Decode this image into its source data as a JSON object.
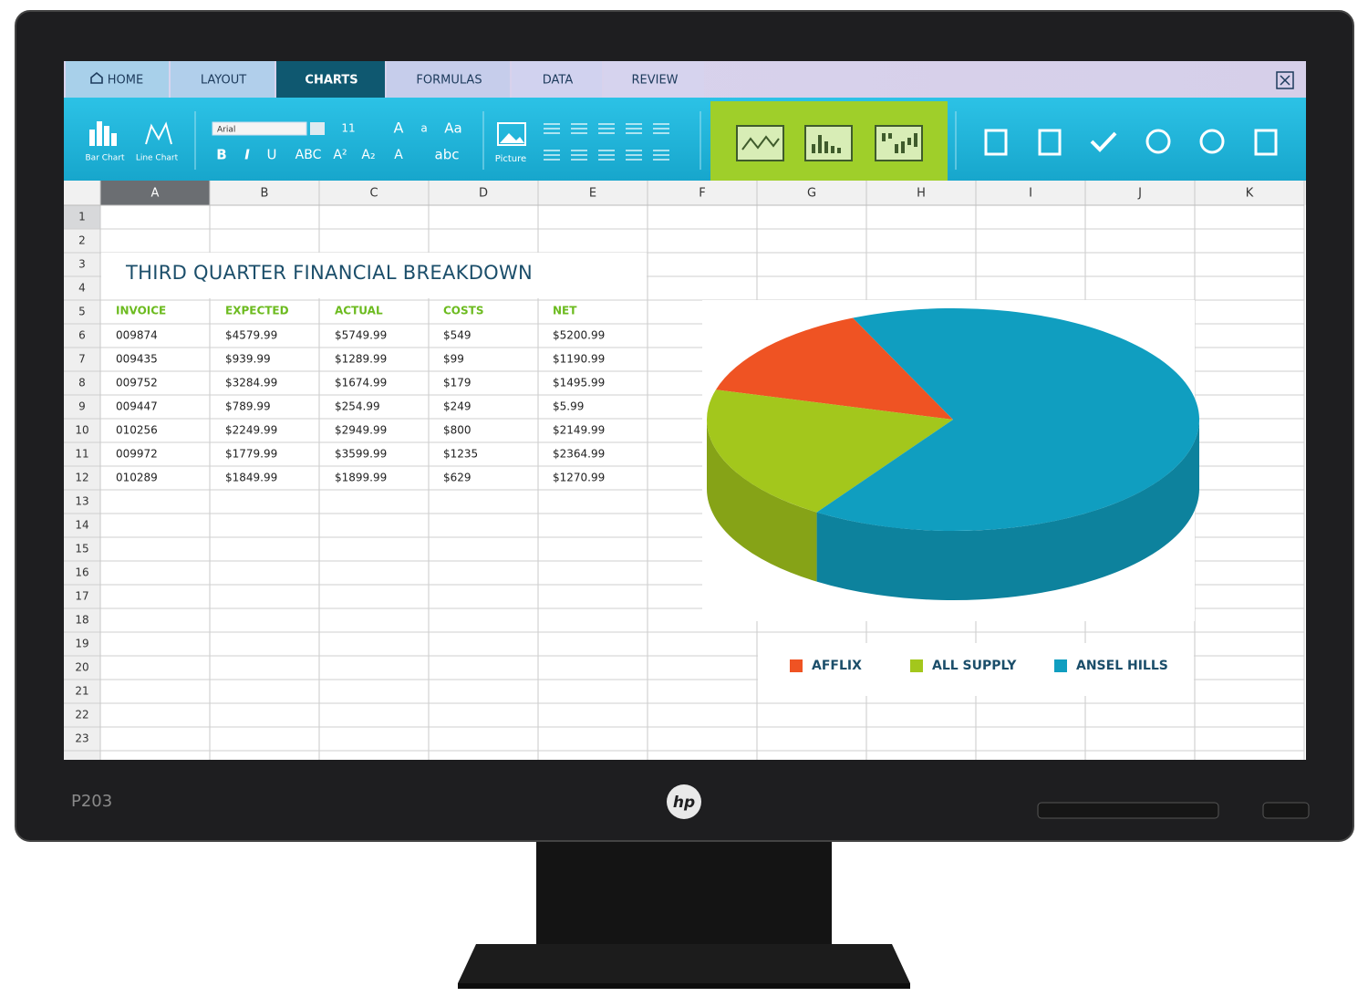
{
  "tabs": [
    "HOME",
    "LAYOUT",
    "CHARTS",
    "FORMULAS",
    "DATA",
    "REVIEW"
  ],
  "ribbon": {
    "buttons": [
      "Bar Chart",
      "Line Chart",
      "Picture"
    ],
    "font": "Arial",
    "size": "11",
    "text_tools": [
      "A",
      "a",
      "Aa",
      "B",
      "I",
      "U",
      "ABC",
      "A²",
      "A₂",
      "A",
      "abc"
    ]
  },
  "columns": [
    "A",
    "B",
    "C",
    "D",
    "E",
    "F",
    "G",
    "H",
    "I",
    "J",
    "K"
  ],
  "rows": [
    1,
    2,
    3,
    4,
    5,
    6,
    7,
    8,
    9,
    10,
    11,
    12,
    13,
    14,
    15,
    16,
    17,
    18,
    19,
    20,
    21,
    22,
    23
  ],
  "sheet": {
    "title": "THIRD QUARTER FINANCIAL BREAKDOWN",
    "header": [
      "INVOICE",
      "EXPECTED",
      "ACTUAL",
      "COSTS",
      "NET"
    ],
    "rows": [
      [
        "009874",
        "$4579.99",
        "$5749.99",
        "$549",
        "$5200.99"
      ],
      [
        "009435",
        "$939.99",
        "$1289.99",
        "$99",
        "$1190.99"
      ],
      [
        "009752",
        "$3284.99",
        "$1674.99",
        "$179",
        "$1495.99"
      ],
      [
        "009447",
        "$789.99",
        "$254.99",
        "$249",
        "$5.99"
      ],
      [
        "010256",
        "$2249.99",
        "$2949.99",
        "$800",
        "$2149.99"
      ],
      [
        "009972",
        "$1779.99",
        "$3599.99",
        "$1235",
        "$2364.99"
      ],
      [
        "010289",
        "$1849.99",
        "$1899.99",
        "$629",
        "$1270.99"
      ]
    ]
  },
  "chart_data": {
    "type": "pie",
    "categories": [
      "AFFLIX",
      "ALL SUPPLY",
      "ANSEL HILLS"
    ],
    "values": [
      14,
      20,
      66
    ],
    "colors": [
      "#ef5323",
      "#a3c71c",
      "#109ec0"
    ]
  },
  "monitor": {
    "model": "P203",
    "brand": "hp"
  }
}
